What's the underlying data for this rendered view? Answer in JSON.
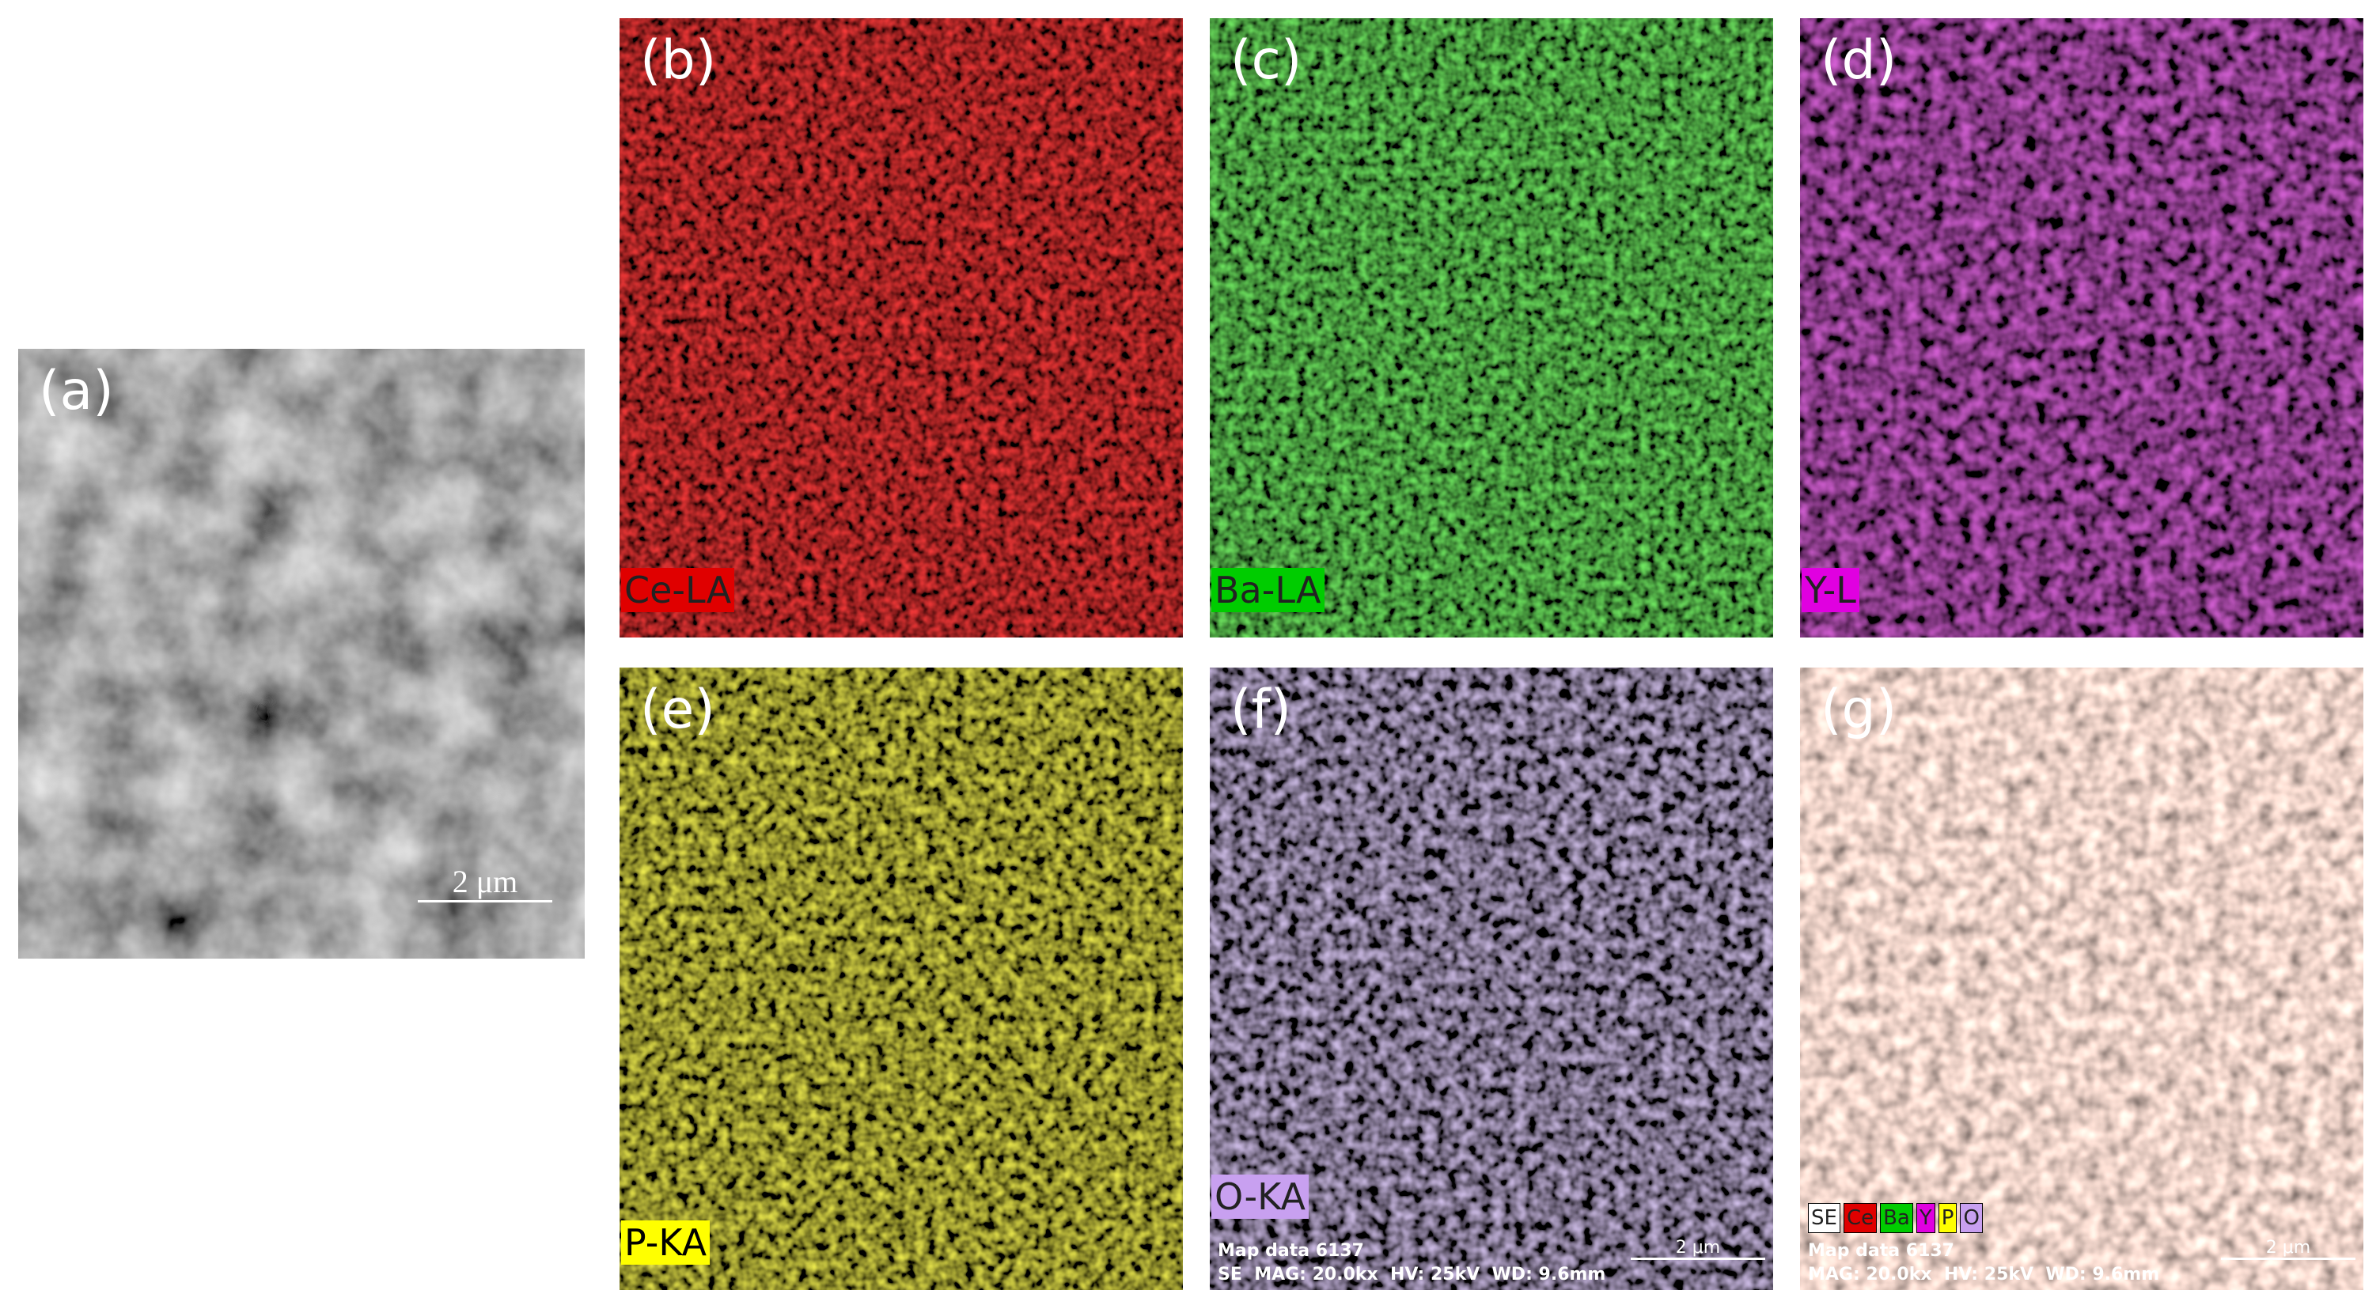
{
  "panels": [
    {
      "label": "(a)",
      "scale_bar": "2 μm"
    },
    {
      "label": "(b)",
      "element": "Ce-LA"
    },
    {
      "label": "(c)",
      "element": "Ba-LA"
    },
    {
      "label": "(d)",
      "element": "Y-L"
    },
    {
      "label": "(e)",
      "element": "P-KA"
    },
    {
      "label": "(f)",
      "element": "O-KA",
      "info": [
        "Map data 6137",
        "SE  MAG: 20.0kx  HV: 25kV  WD: 9.6mm"
      ],
      "scale_bar": "2 μm"
    },
    {
      "label": "(g)",
      "legend": [
        "SE",
        "Ce",
        "Ba",
        "Y",
        "P",
        "O"
      ],
      "info": [
        "Map data 6137",
        "MAG: 20.0kx  HV: 25kV  WD: 9.6mm"
      ],
      "scale_bar": "2 μm"
    }
  ]
}
